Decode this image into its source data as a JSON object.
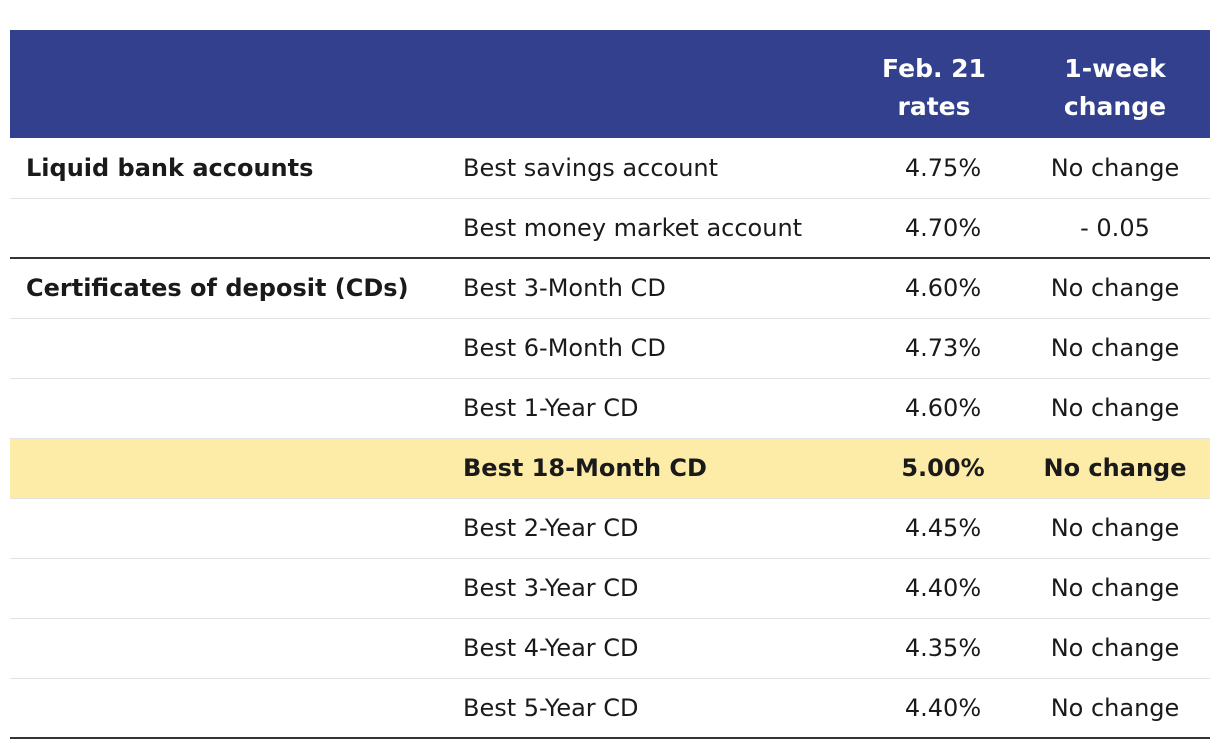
{
  "header": {
    "col_rates": "Feb. 21 rates",
    "col_change": "1-week change"
  },
  "groups": [
    {
      "category": "Liquid bank accounts",
      "rows": [
        {
          "product": "Best savings account",
          "rate": "4.75%",
          "change": "No change"
        },
        {
          "product": "Best money market account",
          "rate": "4.70%",
          "change": "- 0.05"
        }
      ]
    },
    {
      "category": "Certificates of deposit (CDs)",
      "rows": [
        {
          "product": "Best 3-Month CD",
          "rate": "4.60%",
          "change": "No change"
        },
        {
          "product": "Best 6-Month CD",
          "rate": "4.73%",
          "change": "No change"
        },
        {
          "product": "Best 1-Year CD",
          "rate": "4.60%",
          "change": "No change"
        },
        {
          "product": "Best 18-Month CD",
          "rate": "5.00%",
          "change": "No change"
        },
        {
          "product": "Best 2-Year CD",
          "rate": "4.45%",
          "change": "No change"
        },
        {
          "product": "Best 3-Year CD",
          "rate": "4.40%",
          "change": "No change"
        },
        {
          "product": "Best 4-Year CD",
          "rate": "4.35%",
          "change": "No change"
        },
        {
          "product": "Best 5-Year CD",
          "rate": "4.40%",
          "change": "No change"
        }
      ]
    }
  ],
  "colors": {
    "header_bg": "#33408e",
    "header_text": "#ffffff",
    "highlight_bg": "#fdeba8"
  }
}
